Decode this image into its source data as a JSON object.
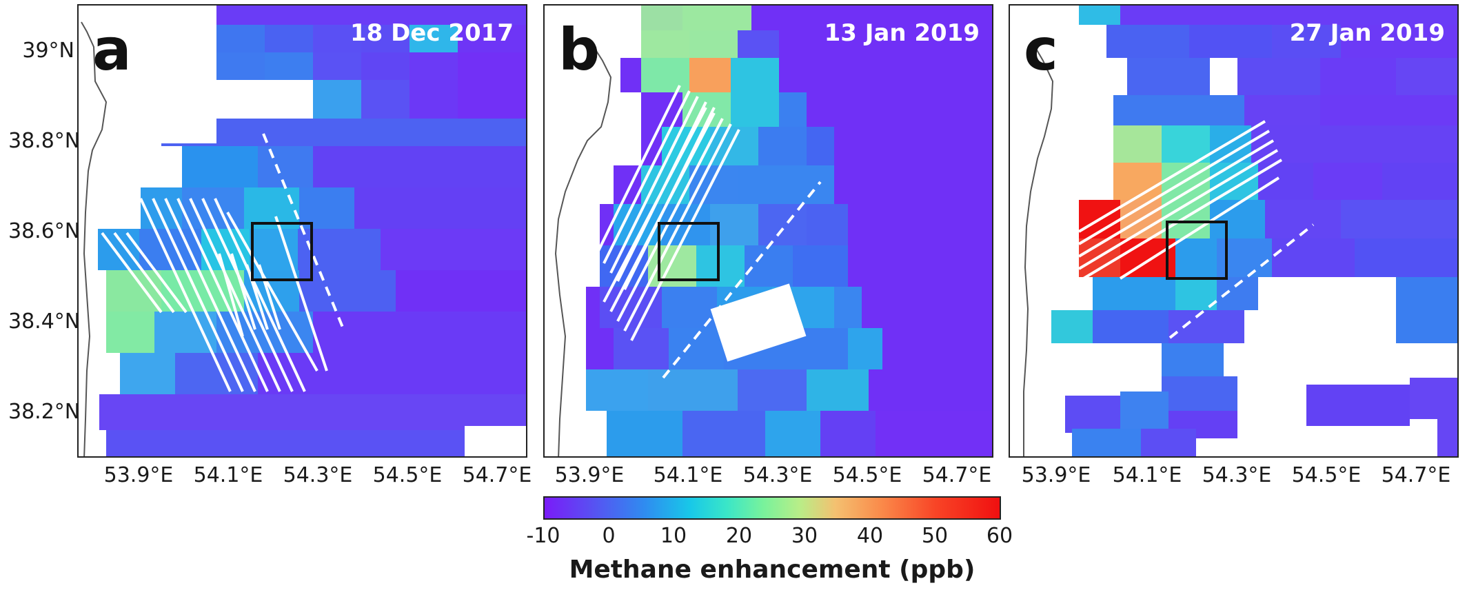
{
  "figure": {
    "panels": [
      {
        "letter": "a",
        "date": "18 Dec 2017"
      },
      {
        "letter": "b",
        "date": "13 Jan 2019"
      },
      {
        "letter": "c",
        "date": "27 Jan 2019"
      }
    ],
    "lat_ticks": [
      "39°N",
      "38.8°N",
      "38.6°N",
      "38.4°N",
      "38.2°N"
    ],
    "lon_ticks": [
      "53.9°E",
      "54.1°E",
      "54.3°E",
      "54.5°E",
      "54.7°E"
    ],
    "colorbar": {
      "ticks": [
        "-10",
        "0",
        "10",
        "20",
        "30",
        "40",
        "50",
        "60"
      ],
      "title": "Methane enhancement (ppb)",
      "range": [
        -10,
        60
      ],
      "colormap": "rainbow (purple to red)"
    }
  }
}
